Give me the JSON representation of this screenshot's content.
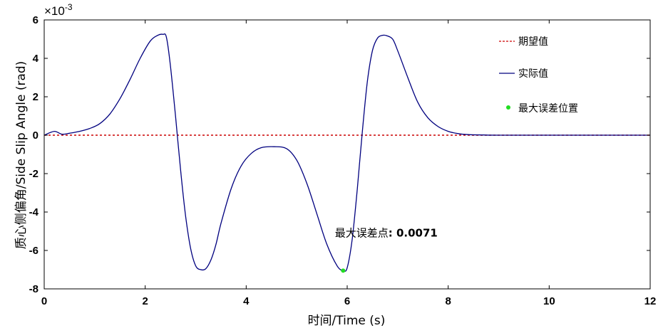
{
  "chart_data": {
    "type": "line",
    "xlabel": "时间/Time (s)",
    "ylabel": "质心侧偏角/Side Slip Angle (rad)",
    "y_exponent_label": "×10",
    "y_exponent_power": "-3",
    "xlim": [
      0,
      12
    ],
    "ylim": [
      -8,
      6
    ],
    "xticks": [
      "0",
      "2",
      "4",
      "6",
      "8",
      "10",
      "12"
    ],
    "yticks": [
      "6",
      "4",
      "2",
      "0",
      "-2",
      "-4",
      "-6",
      "-8"
    ],
    "grid": false,
    "legend_position": "top-right",
    "series": [
      {
        "name": "期望值",
        "color": "#cc0000",
        "style": "dashed",
        "x": [
          0,
          12
        ],
        "y": [
          0,
          0
        ]
      },
      {
        "name": "实际值",
        "color": "#00007f",
        "style": "solid",
        "x": [
          0,
          0.2,
          0.35,
          0.5,
          0.7,
          0.9,
          1.1,
          1.3,
          1.5,
          1.7,
          1.9,
          2.1,
          2.25,
          2.35,
          2.42,
          2.5,
          2.6,
          2.7,
          2.8,
          2.9,
          3.0,
          3.1,
          3.2,
          3.3,
          3.4,
          3.5,
          3.7,
          3.9,
          4.1,
          4.3,
          4.55,
          4.8,
          5.0,
          5.2,
          5.4,
          5.6,
          5.8,
          5.92,
          6.0,
          6.1,
          6.2,
          6.3,
          6.4,
          6.5,
          6.6,
          6.7,
          6.78,
          6.9,
          7.0,
          7.2,
          7.4,
          7.6,
          7.8,
          8.0,
          8.2,
          8.4,
          8.7,
          9.0,
          10.0,
          11.0,
          12.0
        ],
        "y": [
          0,
          0.2,
          0.05,
          0.1,
          0.2,
          0.35,
          0.6,
          1.1,
          1.9,
          2.9,
          4.0,
          4.9,
          5.2,
          5.25,
          5.1,
          3.6,
          1.0,
          -1.8,
          -4.2,
          -5.9,
          -6.8,
          -7.0,
          -6.95,
          -6.5,
          -5.7,
          -4.6,
          -2.8,
          -1.6,
          -0.95,
          -0.65,
          -0.6,
          -0.7,
          -1.3,
          -2.5,
          -4.1,
          -5.7,
          -6.8,
          -7.05,
          -6.9,
          -5.4,
          -2.8,
          0.2,
          2.8,
          4.4,
          5.05,
          5.2,
          5.18,
          5.0,
          4.4,
          3.0,
          1.7,
          0.9,
          0.45,
          0.2,
          0.08,
          0.03,
          0.01,
          0.0,
          0.0,
          0.0,
          0.0
        ]
      },
      {
        "name": "最大误差位置",
        "color": "#22dd22",
        "style": "marker",
        "x": [
          5.92
        ],
        "y": [
          -7.05
        ]
      }
    ],
    "annotation": {
      "label": "最大误差点",
      "value": ": 0.0071",
      "x": 6.9,
      "y": -5.1
    }
  }
}
